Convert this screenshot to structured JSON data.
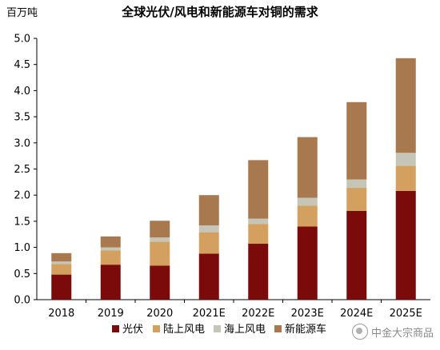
{
  "colors": {
    "pv": "#7b0a0a",
    "onshore_wind": "#d4a060",
    "offshore_wind": "#c5c5b8",
    "nev": "#a8784f"
  },
  "watermark": {
    "icon": "wechat-icon",
    "text": "中金大宗商品"
  },
  "chart_data": {
    "type": "bar",
    "stacked": true,
    "title": "全球光伏/风电和新能源车对铜的需求",
    "ylabel": "百万吨",
    "xlabel": "",
    "ylim": [
      0,
      5.0
    ],
    "yticks": [
      "0.0",
      "0.5",
      "1.0",
      "1.5",
      "2.0",
      "2.5",
      "3.0",
      "3.5",
      "4.0",
      "4.5",
      "5.0"
    ],
    "grid": false,
    "legend": "bottom",
    "categories": [
      "2018",
      "2019",
      "2020",
      "2021E",
      "2022E",
      "2023E",
      "2024E",
      "2025E"
    ],
    "series": [
      {
        "name": "光伏",
        "color": "#7b0a0a",
        "values": [
          0.48,
          0.67,
          0.65,
          0.88,
          1.07,
          1.4,
          1.7,
          2.08
        ]
      },
      {
        "name": "陆上风电",
        "color": "#d4a060",
        "values": [
          0.2,
          0.27,
          0.46,
          0.41,
          0.38,
          0.4,
          0.44,
          0.48
        ]
      },
      {
        "name": "海上风电",
        "color": "#c5c5b8",
        "values": [
          0.05,
          0.06,
          0.08,
          0.13,
          0.1,
          0.15,
          0.16,
          0.25
        ]
      },
      {
        "name": "新能源车",
        "color": "#a8784f",
        "values": [
          0.16,
          0.21,
          0.32,
          0.58,
          1.12,
          1.16,
          1.48,
          1.81
        ]
      }
    ]
  }
}
